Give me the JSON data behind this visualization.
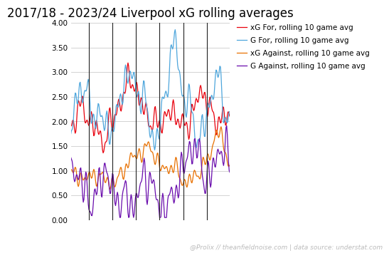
{
  "title": "2017/18 - 2023/24 Liverpool xG rolling averages",
  "watermark": "@Prolix // theanfieldnoise.com | data source: understat.com",
  "legend": [
    "xG For, rolling 10 game avg",
    "G For, rolling 10 game avg",
    "xG Against, rolling 10 game avg",
    "G Against, rolling 10 game avg"
  ],
  "colors": [
    "#e8000d",
    "#4ea6dc",
    "#e87000",
    "#6a0dad"
  ],
  "ylim": [
    0.0,
    4.0
  ],
  "yticks": [
    0.0,
    0.5,
    1.0,
    1.5,
    2.0,
    2.5,
    3.0,
    3.5,
    4.0
  ],
  "n_seasons": 7,
  "games_per_season": 38,
  "background_color": "#ffffff",
  "grid_color": "#cccccc",
  "title_fontsize": 12,
  "legend_fontsize": 7.5,
  "watermark_fontsize": 6.5,
  "line_width": 0.9
}
